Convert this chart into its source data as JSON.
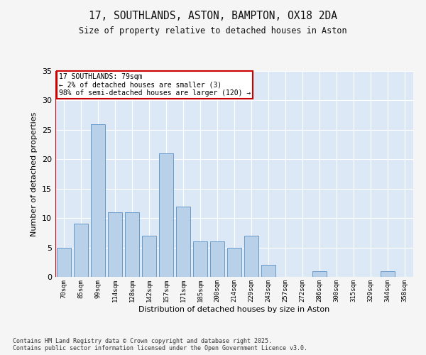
{
  "title1": "17, SOUTHLANDS, ASTON, BAMPTON, OX18 2DA",
  "title2": "Size of property relative to detached houses in Aston",
  "xlabel": "Distribution of detached houses by size in Aston",
  "ylabel": "Number of detached properties",
  "categories": [
    "70sqm",
    "85sqm",
    "99sqm",
    "114sqm",
    "128sqm",
    "142sqm",
    "157sqm",
    "171sqm",
    "185sqm",
    "200sqm",
    "214sqm",
    "229sqm",
    "243sqm",
    "257sqm",
    "272sqm",
    "286sqm",
    "300sqm",
    "315sqm",
    "329sqm",
    "344sqm",
    "358sqm"
  ],
  "values": [
    5,
    9,
    26,
    11,
    11,
    7,
    21,
    12,
    6,
    6,
    5,
    7,
    2,
    0,
    0,
    1,
    0,
    0,
    0,
    1,
    0
  ],
  "bar_color": "#b8d0e8",
  "bar_edge_color": "#6699cc",
  "plot_bg_color": "#dce8f5",
  "fig_bg_color": "#f5f5f5",
  "grid_color": "#ffffff",
  "property_line_color": "#cc0000",
  "annotation_title": "17 SOUTHLANDS: 79sqm",
  "annotation_line1": "← 2% of detached houses are smaller (3)",
  "annotation_line2": "98% of semi-detached houses are larger (120) →",
  "annotation_box_edge_color": "#cc0000",
  "ylim": [
    0,
    35
  ],
  "yticks": [
    0,
    5,
    10,
    15,
    20,
    25,
    30,
    35
  ],
  "footer1": "Contains HM Land Registry data © Crown copyright and database right 2025.",
  "footer2": "Contains public sector information licensed under the Open Government Licence v3.0."
}
